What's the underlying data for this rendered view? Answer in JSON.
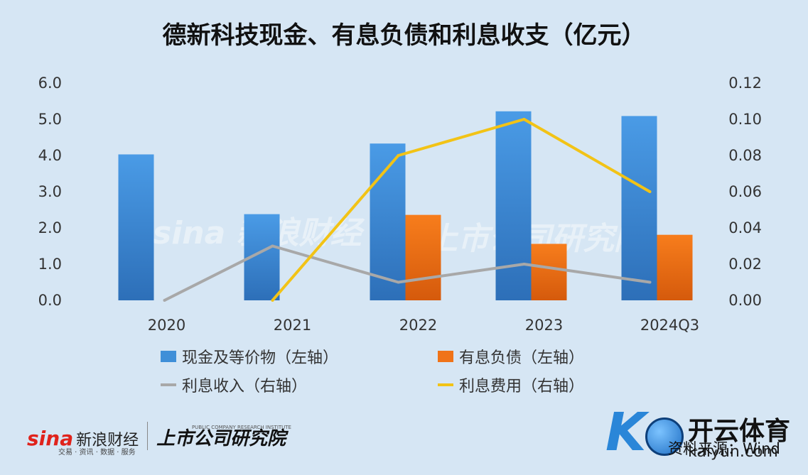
{
  "chart_data": {
    "type": "bar",
    "title": "德新科技现金、有息负债和利息收支（亿元）",
    "categories": [
      "2020",
      "2021",
      "2022",
      "2023",
      "2024Q3"
    ],
    "series": [
      {
        "name": "现金及等价物（左轴）",
        "kind": "bar",
        "axis": "left",
        "color": "#3f8fd8",
        "values": [
          4.03,
          2.38,
          4.33,
          5.22,
          5.09
        ]
      },
      {
        "name": "有息负债（左轴）",
        "kind": "bar",
        "axis": "left",
        "color": "#f07318",
        "values": [
          0,
          0,
          2.36,
          1.56,
          1.81
        ]
      },
      {
        "name": "利息收入（右轴）",
        "kind": "line",
        "axis": "right",
        "color": "#a8a8a8",
        "values": [
          0.0,
          0.03,
          0.01,
          0.02,
          0.01
        ]
      },
      {
        "name": "利息费用（右轴）",
        "kind": "line",
        "axis": "right",
        "color": "#f2c316",
        "values": [
          null,
          0.0,
          0.08,
          0.1,
          0.06
        ]
      }
    ],
    "y_left": {
      "range": [
        0,
        6
      ],
      "ticks": [
        "0.0",
        "1.0",
        "2.0",
        "3.0",
        "4.0",
        "5.0",
        "6.0"
      ]
    },
    "y_right": {
      "range": [
        0,
        0.12
      ],
      "ticks": [
        "0.00",
        "0.02",
        "0.04",
        "0.06",
        "0.08",
        "0.10",
        "0.12"
      ]
    },
    "grid": false,
    "legend": "bottom"
  },
  "footer": {
    "sina_logo": "sina",
    "sina_cn": "新浪财经",
    "sina_sub": "交易 · 资讯 · 数据 · 服务",
    "institute": "上市公司研究院",
    "institute_en": "PUBLIC COMPANY RESEARCH INSTITUTE",
    "source": "资料来源：Wind"
  },
  "watermark": {
    "text1": "sina 新浪财经",
    "text2": "上市公司研究院"
  },
  "brand": {
    "logo_letter": "K",
    "name_cn": "开云体育",
    "name_en": "kaiyun.com"
  }
}
